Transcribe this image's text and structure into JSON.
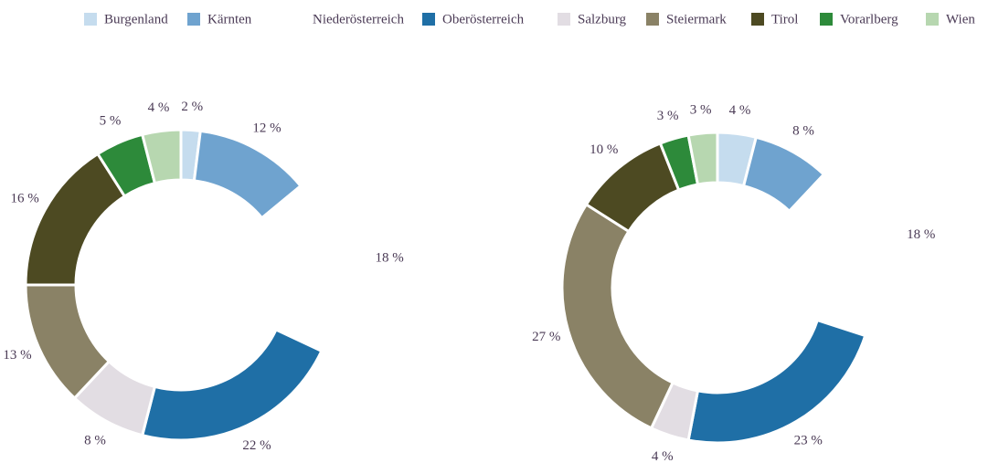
{
  "chart_data": {
    "type": "pie",
    "categories": [
      "Burgenland",
      "Kärnten",
      "Niederösterreich",
      "Oberösterreich",
      "Salzburg",
      "Steiermark",
      "Tirol",
      "Vorarlberg",
      "Wien"
    ],
    "colors": [
      "#c5dcee",
      "#6fa3cf",
      "#ffffff",
      "#1f6fa6",
      "#e2dde3",
      "#8a8266",
      "#4d4a22",
      "#2d8a3a",
      "#b7d7b0"
    ],
    "series": [
      {
        "values": [
          2,
          12,
          18,
          22,
          8,
          13,
          16,
          5,
          4
        ],
        "value_labels": [
          "2 %",
          "12 %",
          "18 %",
          "22 %",
          "8 %",
          "13 %",
          "16 %",
          "5 %",
          "4 %"
        ]
      },
      {
        "values": [
          4,
          8,
          18,
          23,
          4,
          27,
          10,
          3,
          3
        ],
        "value_labels": [
          "4 %",
          "8 %",
          "18 %",
          "23 %",
          "4 %",
          "27 %",
          "10 %",
          "3 %",
          "3 %"
        ]
      }
    ]
  }
}
